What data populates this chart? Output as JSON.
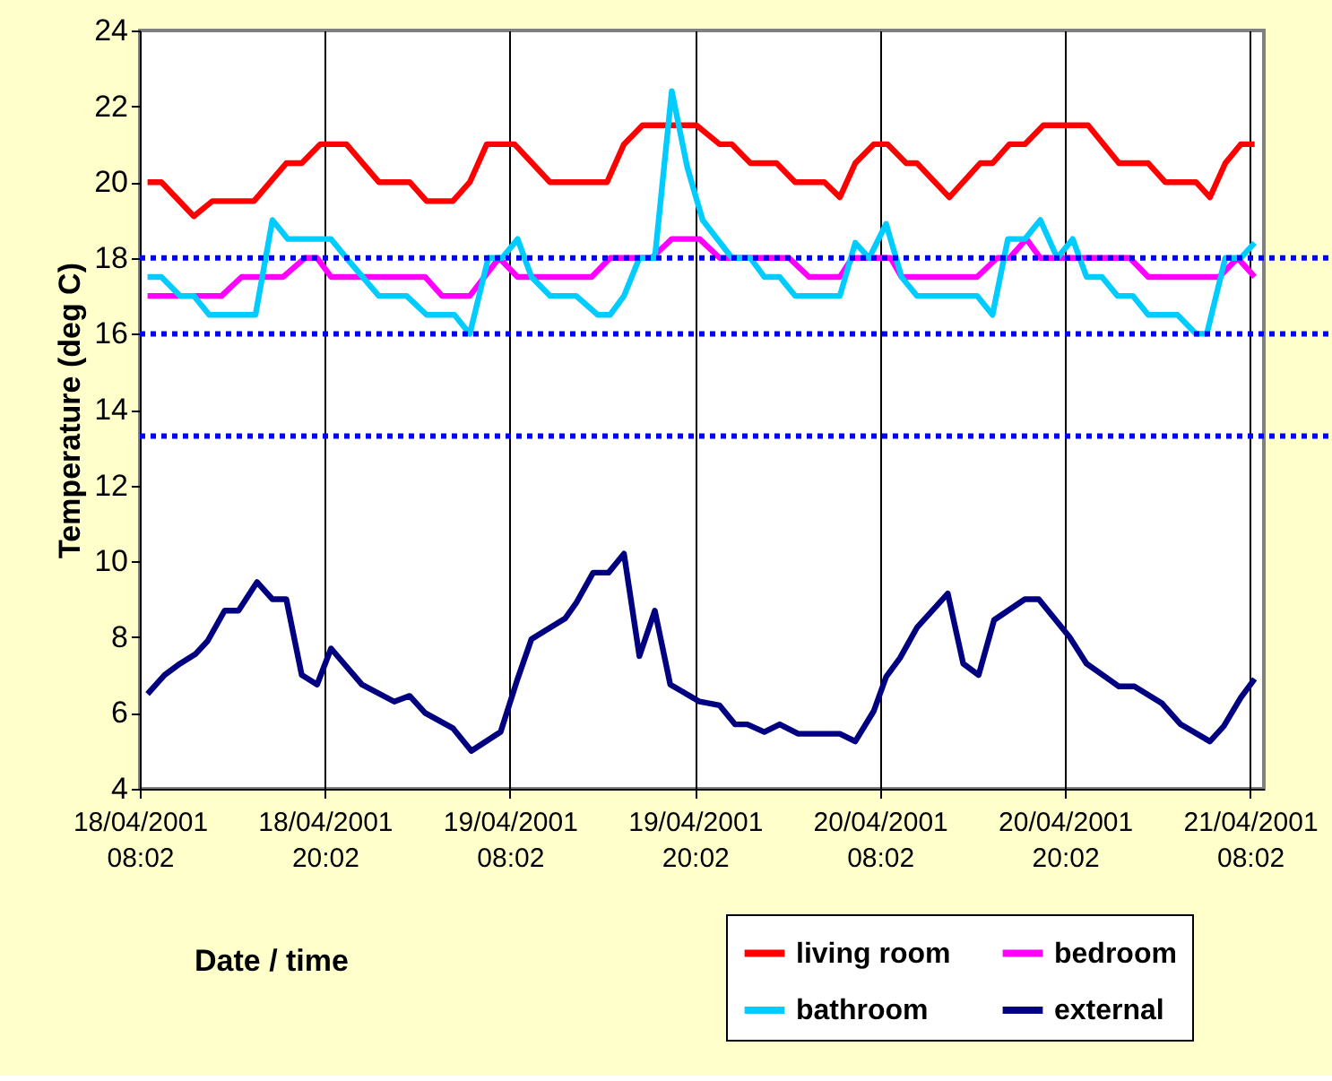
{
  "chart_data": {
    "type": "line",
    "xlabel": "Date / time",
    "ylabel": "Temperature (deg C)",
    "xlim": [
      "2001-04-18T08:02",
      "2001-04-21T08:56"
    ],
    "xticks": [
      {
        "value": "2001-04-18T08:02",
        "label": "18/04/2001 08:02"
      },
      {
        "value": "2001-04-18T20:02",
        "label": "18/04/2001 20:02"
      },
      {
        "value": "2001-04-19T08:02",
        "label": "19/04/2001 08:02"
      },
      {
        "value": "2001-04-19T20:02",
        "label": "19/04/2001 20:02"
      },
      {
        "value": "2001-04-20T08:02",
        "label": "20/04/2001 08:02"
      },
      {
        "value": "2001-04-20T20:02",
        "label": "20/04/2001 20:02"
      },
      {
        "value": "2001-04-21T08:02",
        "label": "21/04/2001 08:02"
      }
    ],
    "ylim": [
      4,
      24
    ],
    "yticks": [
      4,
      6,
      8,
      10,
      12,
      14,
      16,
      18,
      20,
      22,
      24
    ],
    "grid": "x",
    "legend": "bottom right",
    "marker": "none",
    "line_style": "solid",
    "ref_lines": [
      {
        "axis": "y",
        "value": 18,
        "color": "#0000ff",
        "line_style": "dotted"
      },
      {
        "axis": "y",
        "value": 16,
        "color": "#0000ff",
        "line_style": "dotted"
      },
      {
        "axis": "y",
        "value": 13.3,
        "color": "#0000ff",
        "line_style": "dotted"
      }
    ],
    "series": [
      {
        "name": "living room",
        "color": "#ff0000",
        "x": [
          "2001-04-18T08:32",
          "2001-04-18T09:26",
          "2001-04-18T11:32",
          "2001-04-18T12:44",
          "2001-04-18T15:26",
          "2001-04-18T17:32",
          "2001-04-18T18:32",
          "2001-04-18T19:44",
          "2001-04-18T21:26",
          "2001-04-18T23:32",
          "2001-04-19T01:32",
          "2001-04-19T02:38",
          "2001-04-19T04:20",
          "2001-04-19T05:26",
          "2001-04-19T06:32",
          "2001-04-19T08:20",
          "2001-04-19T10:38",
          "2001-04-19T14:20",
          "2001-04-19T15:26",
          "2001-04-19T16:38",
          "2001-04-19T20:08",
          "2001-04-19T21:38",
          "2001-04-19T22:26",
          "2001-04-19T23:38",
          "2001-04-20T01:20",
          "2001-04-20T02:32",
          "2001-04-20T04:26",
          "2001-04-20T05:26",
          "2001-04-20T06:26",
          "2001-04-20T07:38",
          "2001-04-20T08:32",
          "2001-04-20T09:44",
          "2001-04-20T10:26",
          "2001-04-20T12:32",
          "2001-04-20T14:32",
          "2001-04-20T15:20",
          "2001-04-20T16:26",
          "2001-04-20T17:26",
          "2001-04-20T18:38",
          "2001-04-20T21:32",
          "2001-04-20T23:32",
          "2001-04-21T01:26",
          "2001-04-21T02:32",
          "2001-04-21T04:32",
          "2001-04-21T05:26",
          "2001-04-21T06:26",
          "2001-04-21T07:26",
          "2001-04-21T08:20"
        ],
        "values": [
          20,
          20,
          19.1,
          19.5,
          19.5,
          20.5,
          20.5,
          21,
          21,
          20,
          20,
          19.5,
          19.5,
          20,
          21,
          21,
          20,
          20,
          21,
          21.5,
          21.5,
          21,
          21,
          20.5,
          20.5,
          20,
          20,
          19.6,
          20.5,
          21,
          21,
          20.5,
          20.5,
          19.6,
          20.5,
          20.5,
          21,
          21,
          21.5,
          21.5,
          20.5,
          20.5,
          20,
          20,
          19.6,
          20.5,
          21,
          21
        ]
      },
      {
        "name": "bedroom",
        "color": "#ff00ff",
        "x": [
          "2001-04-18T08:32",
          "2001-04-18T13:20",
          "2001-04-18T14:38",
          "2001-04-18T17:20",
          "2001-04-18T18:44",
          "2001-04-18T19:32",
          "2001-04-18T20:26",
          "2001-04-19T02:32",
          "2001-04-19T03:38",
          "2001-04-19T05:26",
          "2001-04-19T07:20",
          "2001-04-19T08:32",
          "2001-04-19T13:20",
          "2001-04-19T14:32",
          "2001-04-19T17:14",
          "2001-04-19T18:32",
          "2001-04-19T20:20",
          "2001-04-19T21:38",
          "2001-04-20T02:08",
          "2001-04-20T03:26",
          "2001-04-20T05:26",
          "2001-04-20T06:14",
          "2001-04-20T08:44",
          "2001-04-20T09:26",
          "2001-04-20T14:20",
          "2001-04-20T15:38",
          "2001-04-20T16:26",
          "2001-04-20T17:32",
          "2001-04-20T18:26",
          "2001-04-21T00:14",
          "2001-04-21T01:26",
          "2001-04-21T06:02",
          "2001-04-21T07:14",
          "2001-04-21T08:20"
        ],
        "values": [
          17,
          17,
          17.5,
          17.5,
          18,
          18,
          17.5,
          17.5,
          17,
          17,
          18,
          17.5,
          17.5,
          18,
          18,
          18.5,
          18.5,
          18,
          18,
          17.5,
          17.5,
          18,
          18,
          17.5,
          17.5,
          18,
          18,
          18.5,
          18,
          18,
          17.5,
          17.5,
          18,
          17.5
        ]
      },
      {
        "name": "bathroom",
        "color": "#00ccff",
        "x": [
          "2001-04-18T08:32",
          "2001-04-18T09:26",
          "2001-04-18T10:38",
          "2001-04-18T11:32",
          "2001-04-18T12:32",
          "2001-04-18T15:32",
          "2001-04-18T16:38",
          "2001-04-18T17:38",
          "2001-04-18T20:26",
          "2001-04-18T21:26",
          "2001-04-18T23:32",
          "2001-04-19T01:20",
          "2001-04-19T02:38",
          "2001-04-19T04:26",
          "2001-04-19T05:26",
          "2001-04-19T06:38",
          "2001-04-19T07:32",
          "2001-04-19T08:32",
          "2001-04-19T09:26",
          "2001-04-19T10:38",
          "2001-04-19T12:20",
          "2001-04-19T13:44",
          "2001-04-19T14:32",
          "2001-04-19T15:26",
          "2001-04-19T16:26",
          "2001-04-19T17:26",
          "2001-04-19T18:32",
          "2001-04-19T19:32",
          "2001-04-19T20:32",
          "2001-04-19T22:26",
          "2001-04-19T23:38",
          "2001-04-20T00:32",
          "2001-04-20T01:32",
          "2001-04-20T02:32",
          "2001-04-20T05:26",
          "2001-04-20T06:26",
          "2001-04-20T07:20",
          "2001-04-20T08:26",
          "2001-04-20T09:26",
          "2001-04-20T10:26",
          "2001-04-20T14:20",
          "2001-04-20T15:20",
          "2001-04-20T16:20",
          "2001-04-20T17:26",
          "2001-04-20T18:26",
          "2001-04-20T19:32",
          "2001-04-20T20:32",
          "2001-04-20T21:26",
          "2001-04-20T22:26",
          "2001-04-20T23:26",
          "2001-04-21T00:26",
          "2001-04-21T01:26",
          "2001-04-21T03:20",
          "2001-04-21T04:32",
          "2001-04-21T05:14",
          "2001-04-21T06:26",
          "2001-04-21T07:26",
          "2001-04-21T08:20"
        ],
        "values": [
          17.5,
          17.5,
          17,
          17,
          16.5,
          16.5,
          19,
          18.5,
          18.5,
          18,
          17,
          17,
          16.5,
          16.5,
          16,
          18,
          18,
          18.5,
          17.5,
          17,
          17,
          16.5,
          16.5,
          17,
          18,
          18,
          22.4,
          20.4,
          19,
          18,
          18,
          17.5,
          17.5,
          17,
          17,
          18.4,
          18,
          18.9,
          17.5,
          17,
          17,
          16.5,
          18.5,
          18.5,
          19,
          18,
          18.5,
          17.5,
          17.5,
          17,
          17,
          16.5,
          16.5,
          16,
          16,
          18,
          18,
          18.4
        ]
      },
      {
        "name": "external",
        "color": "#000080",
        "x": [
          "2001-04-18T08:32",
          "2001-04-18T09:38",
          "2001-04-18T10:38",
          "2001-04-18T11:38",
          "2001-04-18T12:26",
          "2001-04-18T13:32",
          "2001-04-18T14:26",
          "2001-04-18T15:38",
          "2001-04-18T16:38",
          "2001-04-18T17:32",
          "2001-04-18T18:32",
          "2001-04-18T19:32",
          "2001-04-18T20:26",
          "2001-04-18T22:26",
          "2001-04-19T00:32",
          "2001-04-19T01:32",
          "2001-04-19T02:32",
          "2001-04-19T04:20",
          "2001-04-19T05:32",
          "2001-04-19T07:26",
          "2001-04-19T08:32",
          "2001-04-19T09:26",
          "2001-04-19T11:38",
          "2001-04-19T12:20",
          "2001-04-19T13:26",
          "2001-04-19T14:26",
          "2001-04-19T15:26",
          "2001-04-19T16:26",
          "2001-04-19T17:26",
          "2001-04-19T18:26",
          "2001-04-19T20:20",
          "2001-04-19T21:38",
          "2001-04-19T22:38",
          "2001-04-19T23:26",
          "2001-04-20T00:32",
          "2001-04-20T01:32",
          "2001-04-20T02:44",
          "2001-04-20T05:26",
          "2001-04-20T06:26",
          "2001-04-20T07:38",
          "2001-04-20T08:26",
          "2001-04-20T09:20",
          "2001-04-20T10:26",
          "2001-04-20T12:26",
          "2001-04-20T13:26",
          "2001-04-20T14:26",
          "2001-04-20T15:26",
          "2001-04-20T17:26",
          "2001-04-20T18:20",
          "2001-04-20T20:20",
          "2001-04-20T21:26",
          "2001-04-20T23:32",
          "2001-04-21T00:32",
          "2001-04-21T02:20",
          "2001-04-21T03:32",
          "2001-04-21T05:26",
          "2001-04-21T06:20",
          "2001-04-21T07:26",
          "2001-04-21T08:20"
        ],
        "values": [
          6.5,
          7,
          7.3,
          7.55,
          7.9,
          8.7,
          8.7,
          9.45,
          9,
          9,
          7,
          6.75,
          7.7,
          6.75,
          6.3,
          6.45,
          6,
          5.6,
          5,
          5.5,
          6.9,
          7.95,
          8.5,
          8.9,
          9.7,
          9.7,
          10.2,
          7.5,
          8.7,
          6.75,
          6.3,
          6.2,
          5.7,
          5.7,
          5.5,
          5.7,
          5.45,
          5.45,
          5.25,
          6.05,
          6.95,
          7.45,
          8.25,
          9.15,
          7.3,
          7,
          8.45,
          9,
          9,
          8,
          7.3,
          6.7,
          6.7,
          6.25,
          5.7,
          5.25,
          5.65,
          6.4,
          6.9
        ]
      }
    ]
  }
}
